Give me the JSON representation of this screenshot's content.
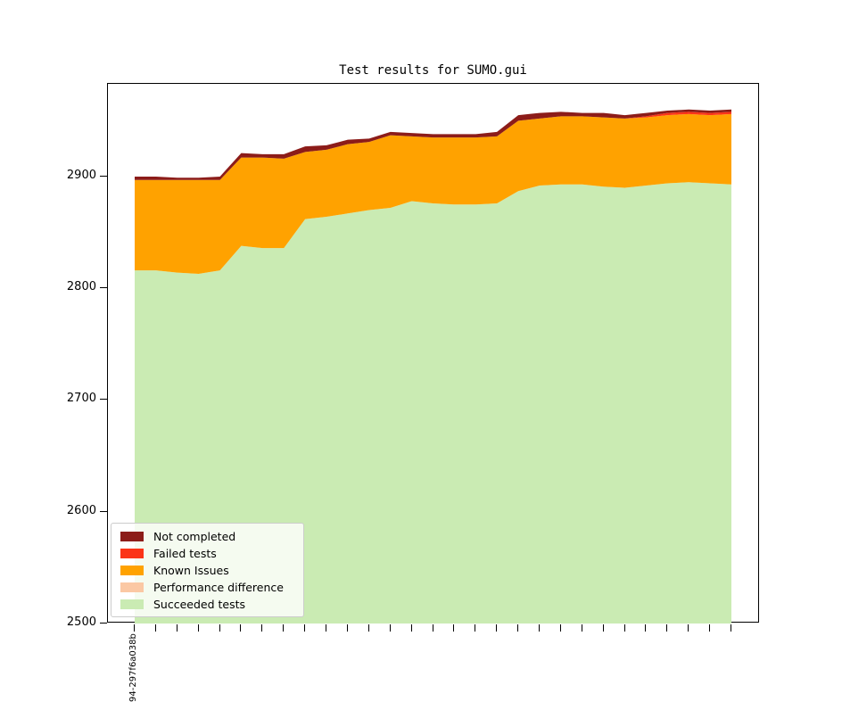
{
  "chart_data": {
    "type": "area",
    "stacked": true,
    "title": "Test results for SUMO.gui",
    "grid": false,
    "legend_position": "lower left",
    "ylim": [
      2500,
      2983
    ],
    "yticks": [
      2500,
      2600,
      2700,
      2800,
      2900
    ],
    "x_tick_labels": [
      "94-297f6a038b",
      "",
      "",
      "",
      "",
      "",
      "",
      "",
      "",
      "",
      "",
      "",
      "",
      "",
      "",
      "",
      "",
      "",
      "",
      "",
      "",
      "",
      "",
      "",
      "",
      "",
      "",
      "",
      ""
    ],
    "series": [
      {
        "name": "Succeeded tests",
        "color": "#CAEBB3",
        "values": [
          2816,
          2816,
          2814,
          2813,
          2816,
          2838,
          2836,
          2836,
          2862,
          2864,
          2867,
          2870,
          2872,
          2878,
          2876,
          2875,
          2875,
          2876,
          2887,
          2892,
          2893,
          2893,
          2891,
          2890,
          2892,
          2894,
          2895,
          2894,
          2893
        ]
      },
      {
        "name": "Performance difference",
        "color": "#FBC8A4",
        "values": [
          0,
          0,
          0,
          0,
          0,
          0,
          0,
          0,
          0,
          0,
          0,
          0,
          0,
          0,
          0,
          0,
          0,
          0,
          0,
          0,
          0,
          0,
          0,
          0,
          0,
          0,
          0,
          0,
          0
        ]
      },
      {
        "name": "Known Issues",
        "color": "#FFA200",
        "values": [
          81,
          81,
          83,
          84,
          81,
          79,
          81,
          80,
          60,
          60,
          62,
          61,
          65,
          58,
          59,
          60,
          60,
          60,
          63,
          60,
          61,
          61,
          62,
          62,
          61,
          61,
          61,
          61,
          63
        ]
      },
      {
        "name": "Failed tests",
        "color": "#FB3418",
        "values": [
          0,
          0,
          0,
          0,
          0,
          0,
          0,
          0,
          0,
          0,
          0,
          0,
          0,
          0,
          0,
          0,
          0,
          0,
          0,
          0,
          0,
          0,
          0,
          0,
          1,
          2,
          2,
          2,
          2
        ]
      },
      {
        "name": "Not completed",
        "color": "#8C1C19",
        "values": [
          3,
          3,
          2,
          2,
          3,
          4,
          3,
          4,
          5,
          4,
          4,
          3,
          3,
          3,
          3,
          3,
          3,
          4,
          5,
          5,
          4,
          3,
          4,
          3,
          3,
          2,
          2,
          2,
          2
        ]
      }
    ],
    "colors": {
      "axes_edge": "#000000",
      "legend_border": "#cccccc",
      "legend_background": "rgba(255,255,255,0.8)"
    }
  }
}
